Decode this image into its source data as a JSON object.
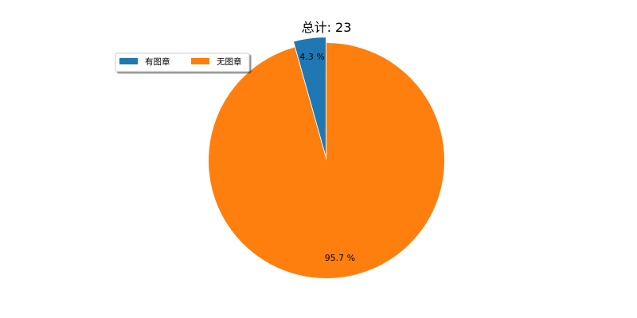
{
  "chart_data": {
    "type": "pie",
    "title": "总计: 23",
    "categories": [
      "有图章",
      "无图章"
    ],
    "values": [
      1,
      22
    ],
    "percent_labels": [
      "4.3 %",
      "95.7 %"
    ],
    "colors": [
      "#1f77b4",
      "#ff7f0e"
    ],
    "explode": [
      true,
      false
    ],
    "legend": {
      "entries": [
        "有图章",
        "无图章"
      ],
      "placement": "upper-left",
      "columns": 2,
      "shadow": true
    }
  }
}
